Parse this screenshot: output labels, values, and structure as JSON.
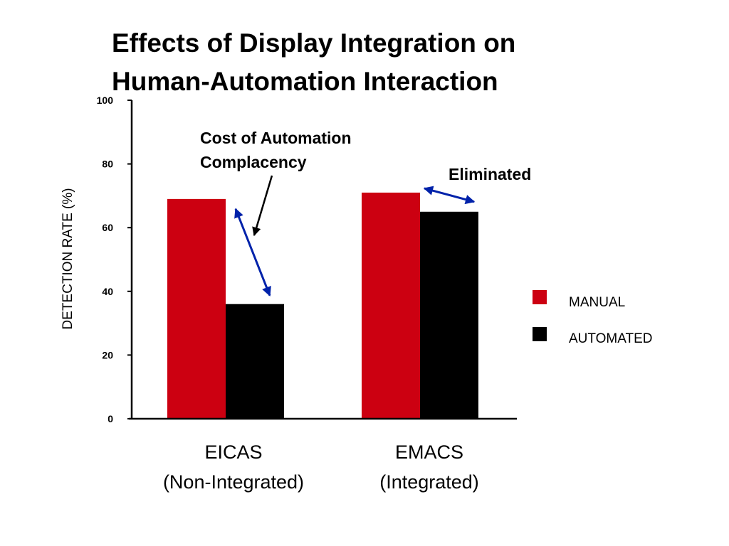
{
  "title_lines": [
    "Effects of Display Integration on",
    "Human-Automation Interaction"
  ],
  "chart_data": {
    "type": "bar",
    "title": "Effects of Display Integration on Human-Automation Interaction",
    "categories": [
      {
        "line1": "EICAS",
        "line2": "(Non-Integrated)"
      },
      {
        "line1": "EMACS",
        "line2": "(Integrated)"
      }
    ],
    "series": [
      {
        "name": "MANUAL",
        "color": "#cc0011",
        "values": [
          69,
          71
        ]
      },
      {
        "name": "AUTOMATED",
        "color": "#000000",
        "values": [
          36,
          65
        ]
      }
    ],
    "ylabel": "DETECTION RATE  (%)",
    "xlabel": "",
    "ylim": [
      0,
      100
    ],
    "yticks": [
      "0",
      "20",
      "40",
      "60",
      "80",
      "100"
    ],
    "grid": false,
    "legend_position": "right",
    "annotations": {
      "complacency": {
        "lines": [
          "Cost of Automation",
          "Complacency"
        ]
      },
      "eliminated": {
        "text": "Eliminated"
      }
    },
    "arrow_color": "#0022aa"
  }
}
